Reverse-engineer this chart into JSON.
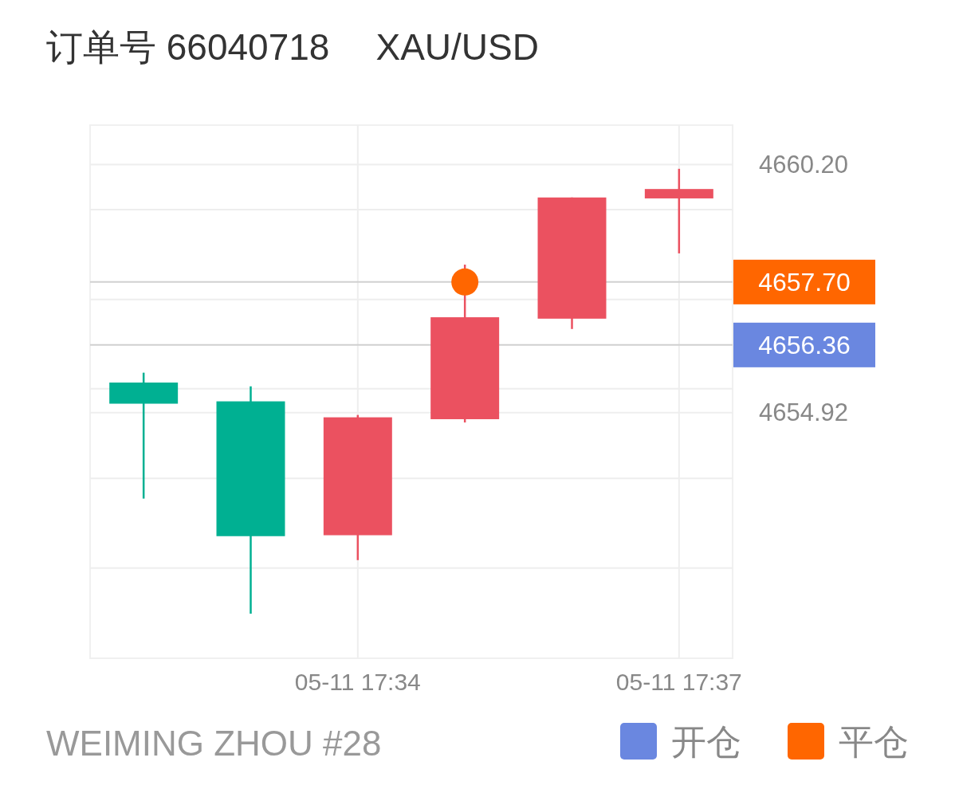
{
  "chart_data": {
    "type": "candlestick",
    "title": "订单号 66040718",
    "subtitle": "XAU/USD",
    "categories": [
      null,
      null,
      "05-11 17:34",
      null,
      null,
      "05-11 17:37"
    ],
    "ohlc": [
      [
        4655.56,
        4655.77,
        4653.09,
        4655.11
      ],
      [
        4655.16,
        4655.48,
        4650.64,
        4652.29
      ],
      [
        4652.31,
        4654.87,
        4651.78,
        4654.82
      ],
      [
        4654.78,
        4658.07,
        4654.71,
        4656.95
      ],
      [
        4656.92,
        4659.5,
        4656.7,
        4659.5
      ],
      [
        4659.48,
        4660.11,
        4658.31,
        4659.68
      ]
    ],
    "colors": [
      "#00b092",
      "#00b092",
      "#eb5160",
      "#eb5160",
      "#eb5160",
      "#eb5160"
    ],
    "series": [
      {
        "name": "开仓",
        "type": "scatter",
        "color": "#6a87e0",
        "values": [
          null,
          null,
          null,
          null,
          null,
          null
        ]
      },
      {
        "name": "平仓",
        "type": "scatter",
        "color": "#ff6600",
        "values": [
          null,
          null,
          null,
          4657.7,
          null,
          null
        ]
      }
    ],
    "ylim": [
      4649.69,
      4661.04
    ],
    "yticks": [
      {
        "value": 4651.61,
        "label": null
      },
      {
        "value": 4653.52,
        "label": null
      },
      {
        "value": 4654.92,
        "label": "4654.92"
      },
      {
        "value": 4655.43,
        "label": null
      },
      {
        "value": 4657.33,
        "label": null
      },
      {
        "value": 4659.24,
        "label": null
      },
      {
        "value": 4660.2,
        "label": "4660.20"
      }
    ],
    "ref_lines": [
      {
        "axis": "y",
        "value": 4656.36,
        "label": "4656.36",
        "color": "#d0d0d0"
      },
      {
        "axis": "y",
        "value": 4657.7,
        "label": "4657.70",
        "color": "#d0d0d0"
      }
    ],
    "annotations": [
      "WEIMING ZHOU #28"
    ],
    "grid": true,
    "legend": "bottom right"
  }
}
